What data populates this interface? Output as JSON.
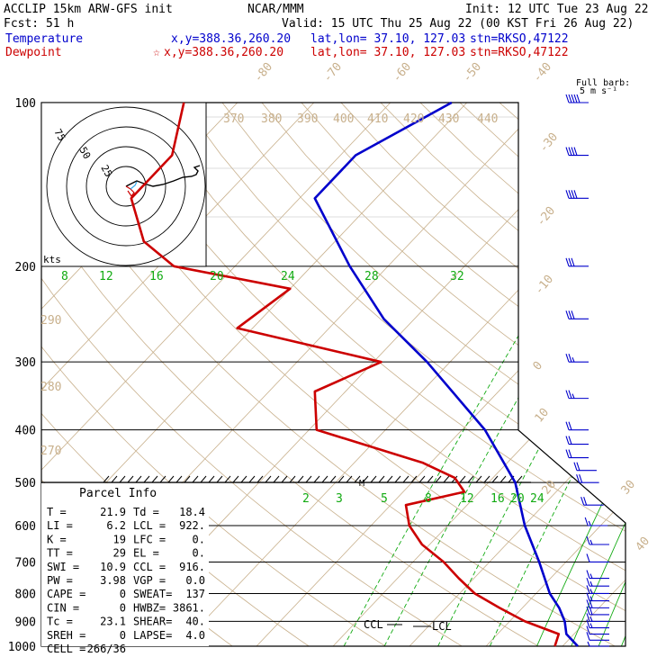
{
  "header": {
    "line1_left": "ACCLIP 15km ARW-GFS init",
    "line1_center": "NCAR/MMM",
    "line1_right": "Init: 12 UTC Tue 23 Aug 22",
    "line2_left": "Fcst:   51 h",
    "line2_right": "Valid: 15 UTC Thu 25 Aug 22 (00 KST Fri 26 Aug 22)",
    "temp_label": "Temperature",
    "temp_xy": "x,y=388.36,260.20",
    "temp_latlon": "lat,lon= 37.10, 127.03",
    "temp_stn": "stn=RKSO,47122",
    "dew_label": "Dewpoint",
    "dew_xy": "x,y=388.36,260.20",
    "dew_latlon": "lat,lon= 37.10, 127.03",
    "dew_stn": "stn=RKSO,47122",
    "barb_note1": "Full barb:",
    "barb_note2": "5 m s⁻¹"
  },
  "colors": {
    "temperature": "#0000cc",
    "dewpoint": "#cc0000",
    "isotherm": "#c8b08c",
    "mixing_ratio": "#11aa11",
    "wind": "#0000cc"
  },
  "hodograph": {
    "units": "kts",
    "ring_labels": [
      "75",
      "50",
      "25"
    ]
  },
  "parcel_info": {
    "title": "Parcel Info",
    "rows": [
      [
        "T  =",
        "21.9",
        "Td =",
        "18.4"
      ],
      [
        "LI =",
        "6.2",
        "LCL =",
        "922."
      ],
      [
        "K  =",
        "19",
        "LFC =",
        "0."
      ],
      [
        "TT =",
        "29",
        "EL =",
        "0."
      ],
      [
        "SWI =",
        "10.9",
        "CCL =",
        "916."
      ],
      [
        "PW =",
        "3.98",
        "VGP =",
        "0.0"
      ],
      [
        "CAPE =",
        "0",
        "SWEAT=",
        "137"
      ],
      [
        "CIN =",
        "0",
        "HWBZ=",
        "3861."
      ],
      [
        "Tc =",
        "23.1",
        "SHEAR=",
        "40."
      ],
      [
        "SREH =",
        "0",
        "LAPSE=",
        "4.0"
      ],
      [
        "CELL =",
        "266/36",
        "",
        ""
      ]
    ]
  },
  "chart_data": {
    "type": "line",
    "title": "",
    "xlabel": "",
    "ylabel": "",
    "pressure_levels": [
      "100",
      "200",
      "300",
      "400",
      "500",
      "600",
      "700",
      "800",
      "900",
      "1000"
    ],
    "isotherm_labels": [
      "-80",
      "-70",
      "-60",
      "-50",
      "-40",
      "-30",
      "-20",
      "-10",
      "0",
      "10",
      "20",
      "30",
      "40"
    ],
    "theta_labels": [
      "370",
      "380",
      "390",
      "400",
      "410",
      "420",
      "430",
      "440",
      "290",
      "280",
      "270"
    ],
    "mixing_ratio_labels_upper": [
      "8",
      "12",
      "16",
      "20",
      "24",
      "28",
      "32"
    ],
    "mixing_ratio_labels_lower": [
      "2",
      "3",
      "5",
      "8",
      "12",
      "16",
      "20",
      "24"
    ],
    "annotations": [
      "CCL",
      "LCL",
      "M"
    ],
    "series": [
      {
        "name": "Temperature",
        "pressure": [
          1000,
          950,
          900,
          850,
          800,
          700,
          600,
          500,
          400,
          300,
          250,
          200,
          150,
          125,
          100
        ],
        "values": [
          22,
          19,
          17.2,
          14.8,
          11.8,
          6.5,
          0.1,
          -6.5,
          -17,
          -33,
          -44,
          -55,
          -68,
          -68,
          -62
        ]
      },
      {
        "name": "Dewpoint",
        "pressure": [
          1000,
          950,
          900,
          850,
          800,
          750,
          700,
          650,
          600,
          550,
          520,
          490,
          460,
          400,
          340,
          300,
          260,
          220,
          200,
          180,
          150,
          125,
          100
        ],
        "values": [
          19,
          18,
          12,
          7,
          2,
          -2,
          -6,
          -11,
          -15,
          -18,
          -12,
          -15,
          -21,
          -39,
          -44,
          -39,
          -62,
          -60,
          -78,
          -85,
          -92,
          -92,
          -97
        ]
      }
    ],
    "wind_barbs": {
      "pressure": [
        1000,
        975,
        950,
        925,
        900,
        875,
        850,
        825,
        800,
        775,
        750,
        700,
        650,
        600,
        550,
        500,
        475,
        450,
        425,
        400,
        350,
        300,
        250,
        200,
        150,
        125,
        100
      ],
      "speed_ms": [
        3,
        5,
        7,
        8,
        9,
        10,
        10,
        9,
        9,
        8,
        8,
        7,
        8,
        9,
        10,
        10,
        10,
        11,
        12,
        12,
        13,
        14,
        15,
        17,
        20,
        22,
        25
      ]
    }
  }
}
